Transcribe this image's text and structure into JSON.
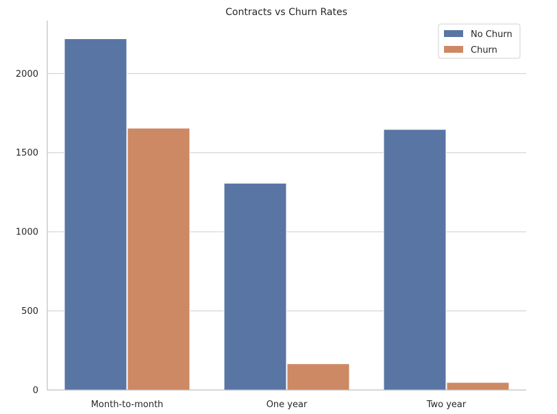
{
  "chart_data": {
    "type": "bar",
    "title": "Contracts vs Churn Rates",
    "xlabel": "",
    "ylabel": "",
    "categories": [
      "Month-to-month",
      "One year",
      "Two year"
    ],
    "series": [
      {
        "name": "No Churn",
        "values": [
          2220,
          1307,
          1647
        ],
        "color": "#5875a4"
      },
      {
        "name": "Churn",
        "values": [
          1655,
          166,
          48
        ],
        "color": "#cc8963"
      }
    ],
    "ylim": [
      0,
      2335
    ],
    "yticks": [
      0,
      500,
      1000,
      1500,
      2000
    ],
    "grid": "horizontal",
    "legend": "top-right"
  }
}
